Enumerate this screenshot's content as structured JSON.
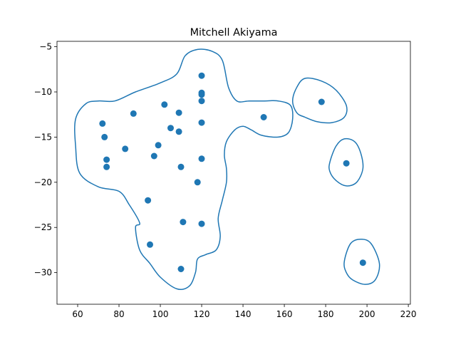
{
  "chart_data": {
    "type": "scatter",
    "title": "Mitchell Akiyama",
    "xlabel": "",
    "ylabel": "",
    "xlim": [
      50,
      221
    ],
    "ylim": [
      -33.5,
      -4.4
    ],
    "xticks": [
      60,
      80,
      100,
      120,
      140,
      160,
      180,
      200,
      220
    ],
    "yticks": [
      -5,
      -10,
      -15,
      -20,
      -25,
      -30
    ],
    "xtick_labels": [
      "60",
      "80",
      "100",
      "120",
      "140",
      "160",
      "180",
      "200",
      "220"
    ],
    "ytick_labels": [
      "−5",
      "−10",
      "−15",
      "−20",
      "−25",
      "−30"
    ],
    "grid": false,
    "colors": {
      "marker": "#1f77b4",
      "contour": "#1f77b4",
      "axes": "#000000"
    },
    "points": [
      {
        "x": 120,
        "y": -8.2
      },
      {
        "x": 120,
        "y": -10.1
      },
      {
        "x": 120,
        "y": -10.3
      },
      {
        "x": 120,
        "y": -11.0
      },
      {
        "x": 102,
        "y": -11.4
      },
      {
        "x": 87,
        "y": -12.4
      },
      {
        "x": 109,
        "y": -12.3
      },
      {
        "x": 150,
        "y": -12.8
      },
      {
        "x": 178,
        "y": -11.1
      },
      {
        "x": 72,
        "y": -13.5
      },
      {
        "x": 120,
        "y": -13.4
      },
      {
        "x": 105,
        "y": -14.0
      },
      {
        "x": 109,
        "y": -14.4
      },
      {
        "x": 73,
        "y": -15.0
      },
      {
        "x": 99,
        "y": -15.9
      },
      {
        "x": 83,
        "y": -16.3
      },
      {
        "x": 97,
        "y": -17.1
      },
      {
        "x": 74,
        "y": -17.5
      },
      {
        "x": 120,
        "y": -17.4
      },
      {
        "x": 190,
        "y": -17.9
      },
      {
        "x": 74,
        "y": -18.3
      },
      {
        "x": 110,
        "y": -18.3
      },
      {
        "x": 118,
        "y": -20.0
      },
      {
        "x": 94,
        "y": -22.0
      },
      {
        "x": 111,
        "y": -24.4
      },
      {
        "x": 120,
        "y": -24.6
      },
      {
        "x": 95,
        "y": -26.9
      },
      {
        "x": 198,
        "y": -28.9
      },
      {
        "x": 110,
        "y": -29.6
      }
    ],
    "contours": [
      [
        [
          78,
          -11
        ],
        [
          88,
          -10
        ],
        [
          100,
          -9
        ],
        [
          108,
          -8
        ],
        [
          112,
          -6
        ],
        [
          118,
          -5.3
        ],
        [
          125,
          -5.5
        ],
        [
          130,
          -6.5
        ],
        [
          133,
          -9.5
        ],
        [
          137,
          -11
        ],
        [
          143,
          -11
        ],
        [
          150,
          -11
        ],
        [
          157,
          -11
        ],
        [
          163,
          -11.5
        ],
        [
          164,
          -13
        ],
        [
          162,
          -14.5
        ],
        [
          157,
          -15
        ],
        [
          149,
          -14.8
        ],
        [
          144,
          -14.2
        ],
        [
          140,
          -13.8
        ],
        [
          136,
          -14.2
        ],
        [
          132,
          -15.5
        ],
        [
          131,
          -17
        ],
        [
          132,
          -18.5
        ],
        [
          132,
          -20
        ],
        [
          130,
          -22
        ],
        [
          128,
          -24
        ],
        [
          129,
          -26
        ],
        [
          127,
          -27.5
        ],
        [
          122,
          -28
        ],
        [
          118,
          -28.5
        ],
        [
          117,
          -30
        ],
        [
          114,
          -31.5
        ],
        [
          108,
          -31.8
        ],
        [
          100,
          -30.5
        ],
        [
          95,
          -29
        ],
        [
          90,
          -27.5
        ],
        [
          88,
          -25
        ],
        [
          90,
          -24.5
        ],
        [
          85,
          -22.5
        ],
        [
          80,
          -21
        ],
        [
          70,
          -20.5
        ],
        [
          61,
          -19
        ],
        [
          59,
          -16
        ],
        [
          59,
          -13
        ],
        [
          64,
          -11.3
        ],
        [
          70,
          -11
        ],
        [
          78,
          -11
        ]
      ],
      [
        [
          164,
          -11
        ],
        [
          166,
          -9.5
        ],
        [
          170,
          -8.5
        ],
        [
          178,
          -8.8
        ],
        [
          185,
          -9.8
        ],
        [
          190,
          -11.5
        ],
        [
          189,
          -12.8
        ],
        [
          183,
          -13.4
        ],
        [
          176,
          -13.3
        ],
        [
          170,
          -12.8
        ],
        [
          166,
          -12.3
        ],
        [
          164,
          -11
        ]
      ],
      [
        [
          182,
          -17.8
        ],
        [
          185,
          -16
        ],
        [
          189,
          -15.2
        ],
        [
          194,
          -15.5
        ],
        [
          197,
          -16.8
        ],
        [
          198,
          -18.5
        ],
        [
          195,
          -20
        ],
        [
          190,
          -20.4
        ],
        [
          185,
          -19.8
        ],
        [
          182,
          -18.8
        ],
        [
          182,
          -17.8
        ]
      ],
      [
        [
          189,
          -28.8
        ],
        [
          192,
          -26.8
        ],
        [
          197,
          -26.3
        ],
        [
          202,
          -26.8
        ],
        [
          206,
          -29
        ],
        [
          204,
          -30.8
        ],
        [
          199,
          -31.3
        ],
        [
          193,
          -30.8
        ],
        [
          190,
          -30
        ],
        [
          189,
          -28.8
        ]
      ]
    ]
  }
}
